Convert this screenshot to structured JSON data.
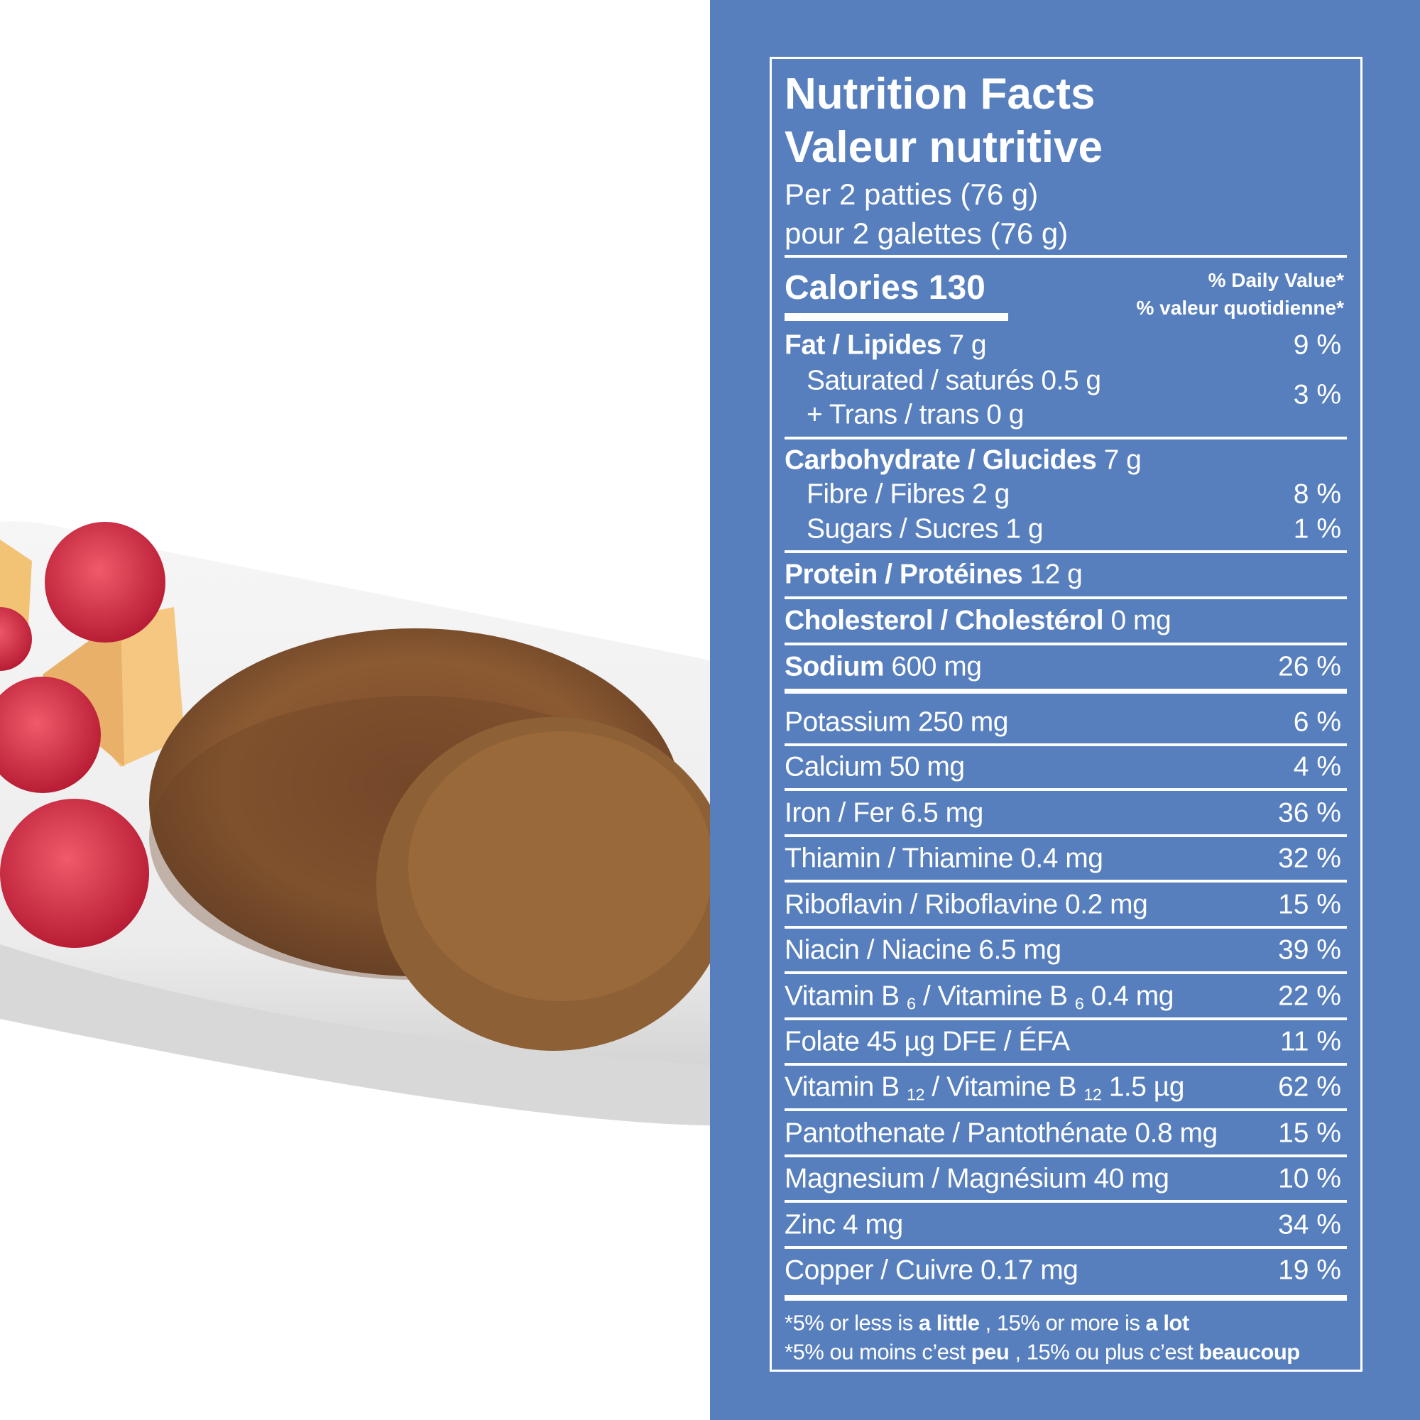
{
  "label": {
    "title": [
      "Nutrition Facts",
      "Valeur nutritive"
    ],
    "serving": [
      "Per 2 patties (76 g)",
      "pour 2 galettes (76 g)"
    ],
    "calories": "Calories 130",
    "dv_header": [
      "% Daily Value*",
      "% valeur quotidienne*"
    ],
    "rows": [
      {
        "parts": [
          {
            "text": "Fat / Lipides",
            "style": "bold"
          },
          {
            "text": "7 g"
          }
        ],
        "dv": "9 %"
      },
      {
        "parts": [
          {
            "text": "Saturated / saturés 0.5 g"
          }
        ],
        "dv": "3 %",
        "indent": true
      },
      {
        "parts": [
          {
            "text": "+ Trans / trans 0 g"
          }
        ],
        "indent": true
      },
      {
        "parts": [
          {
            "text": "Carbohydrate / Glucides",
            "style": "bold"
          },
          {
            "text": "7 g"
          }
        ]
      },
      {
        "parts": [
          {
            "text": "Fibre / Fibres 2 g"
          }
        ],
        "dv": "8 %",
        "indent": true
      },
      {
        "parts": [
          {
            "text": "Sugars / Sucres 1 g"
          }
        ],
        "dv": "1 %",
        "indent": true
      },
      {
        "parts": [
          {
            "text": "Protein / Protéines",
            "style": "bold"
          },
          {
            "text": "12 g"
          }
        ]
      },
      {
        "parts": [
          {
            "text": "Cholesterol / Cholestérol",
            "style": "bold"
          },
          {
            "text": "0 mg"
          }
        ]
      },
      {
        "parts": [
          {
            "text": "Sodium",
            "style": "bold"
          },
          {
            "text": "600 mg"
          }
        ],
        "dv": "26 %"
      },
      {
        "parts": [
          {
            "text": "Potassium 250 mg"
          }
        ],
        "dv": "6 %"
      },
      {
        "parts": [
          {
            "text": "Calcium 50 mg"
          }
        ],
        "dv": "4 %"
      },
      {
        "parts": [
          {
            "text": "Iron / Fer 6.5 mg"
          }
        ],
        "dv": "36 %"
      },
      {
        "parts": [
          {
            "text": "Thiamin / Thiamine 0.4 mg"
          }
        ],
        "dv": "32 %"
      },
      {
        "parts": [
          {
            "text": "Riboflavin / Riboflavine 0.2 mg"
          }
        ],
        "dv": "15 %"
      },
      {
        "parts": [
          {
            "text": "Niacin / Niacine 6.5 mg"
          }
        ],
        "dv": "39 %"
      },
      {
        "parts": [
          {
            "text": "Vitamin B"
          },
          {
            "text": "6",
            "style": "sub"
          },
          {
            "text": "/ Vitamine B"
          },
          {
            "text": "6",
            "style": "sub"
          },
          {
            "text": "0.4 mg"
          }
        ],
        "dv": "22 %"
      },
      {
        "parts": [
          {
            "text": "Folate 45 µg DFE / ÉFA"
          }
        ],
        "dv": "11 %"
      },
      {
        "parts": [
          {
            "text": "Vitamin B"
          },
          {
            "text": "12",
            "style": "sub"
          },
          {
            "text": "/ Vitamine B"
          },
          {
            "text": "12",
            "style": "sub"
          },
          {
            "text": "1.5 µg"
          }
        ],
        "dv": "62 %"
      },
      {
        "parts": [
          {
            "text": "Pantothenate / Pantothénate 0.8 mg"
          }
        ],
        "dv": "15 %"
      },
      {
        "parts": [
          {
            "text": "Magnesium / Magnésium 40 mg"
          }
        ],
        "dv": "10 %"
      },
      {
        "parts": [
          {
            "text": "Zinc 4 mg"
          }
        ],
        "dv": "34 %"
      },
      {
        "parts": [
          {
            "text": "Copper / Cuivre 0.17 mg"
          }
        ],
        "dv": "19 %"
      }
    ],
    "footnote": [
      [
        {
          "text": "*5% or less is"
        },
        {
          "text": "a little",
          "style": "bold"
        },
        {
          "text": ", 15% or more is"
        },
        {
          "text": "a lot",
          "style": "bold"
        }
      ],
      [
        {
          "text": "*5% ou moins c’est"
        },
        {
          "text": "peu",
          "style": "bold"
        },
        {
          "text": ", 15% ou plus c’est"
        },
        {
          "text": "beaucoup",
          "style": "bold"
        }
      ]
    ]
  }
}
